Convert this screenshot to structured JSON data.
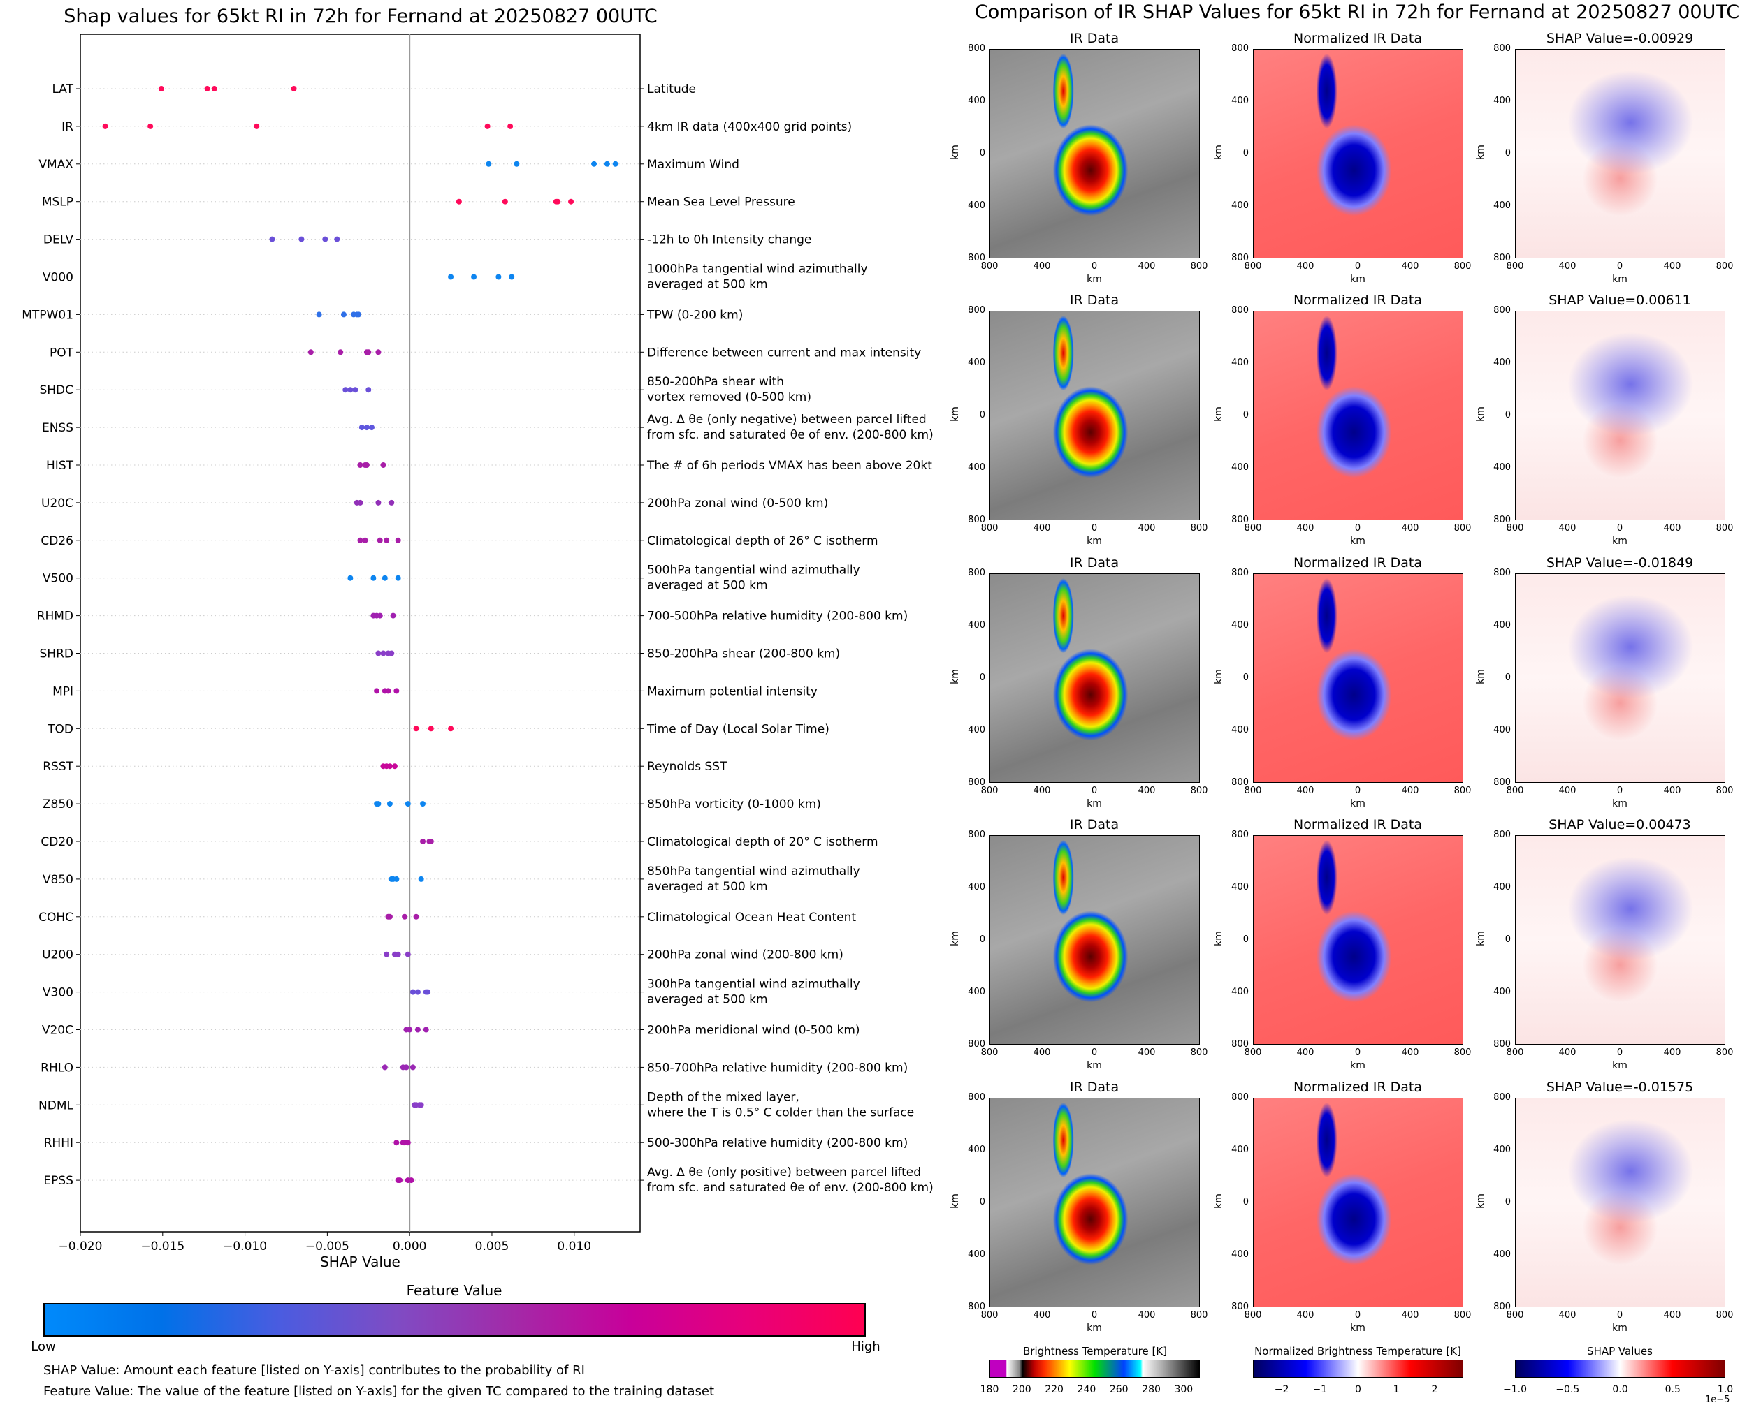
{
  "left": {
    "title": "Shap values for 65kt RI in 72h for Fernand at 20250827 00UTC",
    "feature_value_title": "Feature Value",
    "low_label": "Low",
    "high_label": "High",
    "footnote1": "SHAP Value: Amount each feature [listed on Y-axis] contributes to the probability of RI",
    "footnote2": "Feature Value: The value of the feature [listed on Y-axis] for the given TC compared to the training dataset",
    "colorbar_colors": [
      "#008afb",
      "#0071e8",
      "#4a5ce0",
      "#7f4cc4",
      "#a32aa8",
      "#c8009a",
      "#e8007a",
      "#ff0051"
    ]
  },
  "chart_data": {
    "type": "scatter",
    "title": "Shap values for 65kt RI in 72h for Fernand at 20250827 00UTC",
    "xlabel": "SHAP Value",
    "ylabel": "",
    "xlim": [
      -0.02,
      0.014
    ],
    "xticks": [
      -0.02,
      -0.015,
      -0.01,
      -0.005,
      0.0,
      0.005,
      0.01
    ],
    "xtick_labels": [
      "−0.020",
      "−0.015",
      "−0.010",
      "−0.005",
      "0.000",
      "0.005",
      "0.010"
    ],
    "grid": "horizontal dotted",
    "legend": "colorbar bottom (Feature Value: Low to High)",
    "features": [
      {
        "name": "LAT",
        "desc": "Latitude",
        "color": "#ff0a5a",
        "values": [
          -0.01508,
          -0.01229,
          -0.01186,
          -0.00703
        ]
      },
      {
        "name": "IR",
        "desc": "4km IR data (400x400 grid points)",
        "color": "#ff0a5a",
        "values": [
          -0.01849,
          -0.01575,
          -0.00929,
          0.00473,
          0.00611
        ]
      },
      {
        "name": "VMAX",
        "desc": "Maximum Wind",
        "color": "#0d85f0",
        "values": [
          0.0048,
          0.0065,
          0.0112,
          0.012,
          0.0125
        ]
      },
      {
        "name": "MSLP",
        "desc": "Mean Sea Level Pressure",
        "color": "#ff0a5a",
        "values": [
          0.003,
          0.0058,
          0.0089,
          0.009,
          0.0098
        ]
      },
      {
        "name": "DELV",
        "desc": "-12h to 0h Intensity change",
        "color": "#6a4fd8",
        "values": [
          -0.00835,
          -0.00657,
          -0.00513,
          -0.00441
        ]
      },
      {
        "name": "V000",
        "desc": "1000hPa tangential wind azimuthally\naveraged at 500 km",
        "color": "#0d85f0",
        "values": [
          0.0025,
          0.0039,
          0.0054,
          0.0062
        ]
      },
      {
        "name": "MTPW01",
        "desc": "TPW (0-200 km)",
        "color": "#2f70e8",
        "values": [
          -0.0055,
          -0.004,
          -0.0034,
          -0.0032,
          -0.0031
        ]
      },
      {
        "name": "POT",
        "desc": "Difference between current and max intensity",
        "color": "#a81ea8",
        "values": [
          -0.006,
          -0.0042,
          -0.0026,
          -0.0025,
          -0.0019
        ]
      },
      {
        "name": "SHDC",
        "desc": "850-200hPa shear with\nvortex removed (0-500 km)",
        "color": "#6a4fd8",
        "values": [
          -0.0039,
          -0.0036,
          -0.0033,
          -0.0025
        ]
      },
      {
        "name": "ENSS",
        "desc": "Avg. Δ θe (only negative) between parcel lifted\nfrom sfc. and saturated θe of env. (200-800 km)",
        "color": "#5f57de",
        "values": [
          -0.0029,
          -0.0026,
          -0.0023
        ]
      },
      {
        "name": "HIST",
        "desc": "The # of 6h periods VMAX has been above 20kt",
        "color": "#a81ea8",
        "values": [
          -0.003,
          -0.0027,
          -0.0026,
          -0.0016
        ]
      },
      {
        "name": "U20C",
        "desc": "200hPa zonal wind (0-500 km)",
        "color": "#9230b8",
        "values": [
          -0.0032,
          -0.003,
          -0.0019,
          -0.0011
        ]
      },
      {
        "name": "CD26",
        "desc": "Climatological depth of 26° C isotherm",
        "color": "#a81ea8",
        "values": [
          -0.003,
          -0.0027,
          -0.0018,
          -0.0014,
          -0.0007
        ]
      },
      {
        "name": "V500",
        "desc": "500hPa tangential wind azimuthally\naveraged at 500 km",
        "color": "#0d85f0",
        "values": [
          -0.0036,
          -0.0022,
          -0.0015,
          -0.0007
        ]
      },
      {
        "name": "RHMD",
        "desc": "700-500hPa relative humidity (200-800 km)",
        "color": "#a020b0",
        "values": [
          -0.0022,
          -0.002,
          -0.0018,
          -0.001
        ]
      },
      {
        "name": "SHRD",
        "desc": "850-200hPa shear (200-800 km)",
        "color": "#8a3ec8",
        "values": [
          -0.0019,
          -0.0016,
          -0.0013,
          -0.0011
        ]
      },
      {
        "name": "MPI",
        "desc": "Maximum potential intensity",
        "color": "#b012a8",
        "values": [
          -0.002,
          -0.0015,
          -0.0013,
          -0.0008
        ]
      },
      {
        "name": "TOD",
        "desc": "Time of Day (Local Solar Time)",
        "color": "#ff0a5a",
        "values": [
          0.0004,
          0.0013,
          0.0025
        ]
      },
      {
        "name": "RSST",
        "desc": "Reynolds SST",
        "color": "#c8089a",
        "values": [
          -0.0016,
          -0.0014,
          -0.0012,
          -0.0009
        ]
      },
      {
        "name": "Z850",
        "desc": "850hPa vorticity (0-1000 km)",
        "color": "#0d85f0",
        "values": [
          -0.002,
          -0.0019,
          -0.0012,
          -0.0001,
          0.0008
        ]
      },
      {
        "name": "CD20",
        "desc": "Climatological depth of 20° C isotherm",
        "color": "#a81ea8",
        "values": [
          0.0008,
          0.0012,
          0.0013
        ]
      },
      {
        "name": "V850",
        "desc": "850hPa tangential wind azimuthally\naveraged at 500 km",
        "color": "#0d85f0",
        "values": [
          -0.0011,
          -0.001,
          -0.0008,
          0.0007
        ]
      },
      {
        "name": "COHC",
        "desc": "Climatological Ocean Heat Content",
        "color": "#a81ea8",
        "values": [
          -0.0013,
          -0.0012,
          -0.0003,
          0.0004
        ]
      },
      {
        "name": "U200",
        "desc": "200hPa zonal wind (200-800 km)",
        "color": "#8a3ec8",
        "values": [
          -0.0014,
          -0.0009,
          -0.0007,
          -0.0001
        ]
      },
      {
        "name": "V300",
        "desc": "300hPa tangential wind azimuthally\naveraged at 500 km",
        "color": "#6a4fd8",
        "values": [
          0.0002,
          0.0005,
          0.001,
          0.0011
        ]
      },
      {
        "name": "V20C",
        "desc": "200hPa meridional wind (0-500 km)",
        "color": "#a020b0",
        "values": [
          -0.0002,
          0.0,
          0.0005,
          0.001
        ]
      },
      {
        "name": "RHLO",
        "desc": "850-700hPa relative humidity (200-800 km)",
        "color": "#9a28b4",
        "values": [
          -0.0015,
          -0.0004,
          -0.0002,
          0.0002
        ]
      },
      {
        "name": "NDML",
        "desc": "Depth of the mixed layer,\nwhere the T is 0.5° C colder than the surface",
        "color": "#8a3ec8",
        "values": [
          0.0003,
          0.0004,
          0.0006,
          0.0007
        ]
      },
      {
        "name": "RHHI",
        "desc": "500-300hPa relative humidity (200-800 km)",
        "color": "#b012a8",
        "values": [
          -0.0008,
          -0.0004,
          -0.0003,
          -0.0001
        ]
      },
      {
        "name": "EPSS",
        "desc": "Avg. Δ θe (only positive) between parcel lifted\nfrom sfc. and saturated θe of env. (200-800 km)",
        "color": "#b012a8",
        "values": [
          -0.0007,
          -0.0006,
          -0.0001,
          0.0001
        ]
      }
    ]
  },
  "right": {
    "title": "Comparison of IR SHAP Values for 65kt RI in 72h for Fernand at 20250827 00UTC",
    "col_titles": [
      "IR Data",
      "Normalized IR Data"
    ],
    "shap_prefix": "SHAP Value=",
    "rows": [
      {
        "shap_value": "-0.00929"
      },
      {
        "shap_value": "0.00611"
      },
      {
        "shap_value": "-0.01849"
      },
      {
        "shap_value": "0.00473"
      },
      {
        "shap_value": "-0.01575"
      }
    ],
    "axis_ticks": [
      "800",
      "400",
      "0",
      "400",
      "800"
    ],
    "axis_label": "km",
    "colorbars": [
      {
        "title": "Brightness Temperature [K]",
        "ticks": [
          "180",
          "200",
          "220",
          "240",
          "260",
          "280",
          "300"
        ],
        "range": [
          180,
          310
        ]
      },
      {
        "title": "Normalized Brightness Temperature [K]",
        "ticks": [
          "−2",
          "−1",
          "0",
          "1",
          "2"
        ],
        "range": [
          -2.75,
          2.75
        ]
      },
      {
        "title": "SHAP Values",
        "ticks": [
          "−1.0",
          "−0.5",
          "0.0",
          "0.5",
          "1.0"
        ],
        "range": [
          -1.0,
          1.0
        ],
        "scale_label": "1e−5"
      }
    ]
  }
}
